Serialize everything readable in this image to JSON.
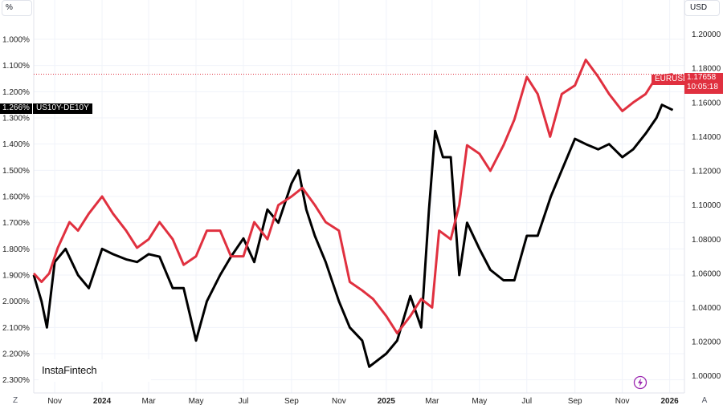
{
  "chart_data": {
    "type": "line",
    "left_axis": {
      "unit": "%",
      "inverted": true,
      "range": [
        0.85,
        2.35
      ],
      "ticks": [
        1.0,
        1.1,
        1.2,
        1.3,
        1.4,
        1.5,
        1.6,
        1.7,
        1.8,
        1.9,
        2.0,
        2.1,
        2.2,
        2.3
      ],
      "tick_labels": [
        "1.000%",
        "1.100%",
        "1.200%",
        "1.300%",
        "1.400%",
        "1.500%",
        "1.600%",
        "1.700%",
        "1.800%",
        "1.900%",
        "2.000%",
        "2.100%",
        "2.200%",
        "2.300%"
      ]
    },
    "right_axis": {
      "unit": "USD",
      "range": [
        0.99,
        1.22
      ],
      "ticks": [
        1.0,
        1.02,
        1.04,
        1.06,
        1.08,
        1.1,
        1.12,
        1.14,
        1.16,
        1.18,
        1.2
      ],
      "tick_labels": [
        "1.00000",
        "1.02000",
        "1.04000",
        "1.06000",
        "1.08000",
        "1.10000",
        "1.12000",
        "1.14000",
        "1.16000",
        "1.18000",
        "1.20000"
      ]
    },
    "x_axis": {
      "range": [
        "2023-10-05",
        "2026-01-20"
      ],
      "ticks": [
        {
          "date": "2023-11-01",
          "label": "Nov",
          "bold": false
        },
        {
          "date": "2024-01-01",
          "label": "2024",
          "bold": true
        },
        {
          "date": "2024-03-01",
          "label": "Mar",
          "bold": false
        },
        {
          "date": "2024-05-01",
          "label": "May",
          "bold": false
        },
        {
          "date": "2024-07-01",
          "label": "Jul",
          "bold": false
        },
        {
          "date": "2024-09-01",
          "label": "Sep",
          "bold": false
        },
        {
          "date": "2024-11-01",
          "label": "Nov",
          "bold": false
        },
        {
          "date": "2025-01-01",
          "label": "2025",
          "bold": true
        },
        {
          "date": "2025-03-01",
          "label": "Mar",
          "bold": false
        },
        {
          "date": "2025-05-01",
          "label": "May",
          "bold": false
        },
        {
          "date": "2025-07-01",
          "label": "Jul",
          "bold": false
        },
        {
          "date": "2025-09-01",
          "label": "Sep",
          "bold": false
        },
        {
          "date": "2025-11-01",
          "label": "Nov",
          "bold": false
        },
        {
          "date": "2026-01-01",
          "label": "2026",
          "bold": true
        }
      ]
    },
    "series": [
      {
        "name": "US10Y-DE10Y",
        "axis": "left",
        "color": "#000000",
        "last_value_label": "1.266%",
        "points": [
          [
            "2023-10-05",
            1.9
          ],
          [
            "2023-10-15",
            2.0
          ],
          [
            "2023-10-22",
            2.1
          ],
          [
            "2023-11-01",
            1.85
          ],
          [
            "2023-11-15",
            1.8
          ],
          [
            "2023-12-01",
            1.9
          ],
          [
            "2023-12-15",
            1.95
          ],
          [
            "2024-01-01",
            1.8
          ],
          [
            "2024-01-15",
            1.82
          ],
          [
            "2024-02-01",
            1.84
          ],
          [
            "2024-02-15",
            1.85
          ],
          [
            "2024-03-01",
            1.82
          ],
          [
            "2024-03-15",
            1.83
          ],
          [
            "2024-04-01",
            1.95
          ],
          [
            "2024-04-15",
            1.95
          ],
          [
            "2024-05-01",
            2.15
          ],
          [
            "2024-05-15",
            2.0
          ],
          [
            "2024-06-01",
            1.9
          ],
          [
            "2024-06-15",
            1.83
          ],
          [
            "2024-07-01",
            1.76
          ],
          [
            "2024-07-15",
            1.85
          ],
          [
            "2024-08-01",
            1.65
          ],
          [
            "2024-08-15",
            1.7
          ],
          [
            "2024-09-01",
            1.55
          ],
          [
            "2024-09-10",
            1.5
          ],
          [
            "2024-09-20",
            1.65
          ],
          [
            "2024-10-01",
            1.75
          ],
          [
            "2024-10-15",
            1.85
          ],
          [
            "2024-11-01",
            2.0
          ],
          [
            "2024-11-15",
            2.1
          ],
          [
            "2024-12-01",
            2.15
          ],
          [
            "2024-12-10",
            2.25
          ],
          [
            "2025-01-01",
            2.2
          ],
          [
            "2025-01-15",
            2.15
          ],
          [
            "2025-02-01",
            1.98
          ],
          [
            "2025-02-15",
            2.1
          ],
          [
            "2025-02-25",
            1.65
          ],
          [
            "2025-03-05",
            1.35
          ],
          [
            "2025-03-15",
            1.45
          ],
          [
            "2025-03-25",
            1.45
          ],
          [
            "2025-04-05",
            1.9
          ],
          [
            "2025-04-15",
            1.7
          ],
          [
            "2025-05-01",
            1.8
          ],
          [
            "2025-05-15",
            1.88
          ],
          [
            "2025-06-01",
            1.92
          ],
          [
            "2025-06-15",
            1.92
          ],
          [
            "2025-07-01",
            1.75
          ],
          [
            "2025-07-15",
            1.75
          ],
          [
            "2025-08-01",
            1.6
          ],
          [
            "2025-08-15",
            1.5
          ],
          [
            "2025-09-01",
            1.38
          ],
          [
            "2025-09-15",
            1.4
          ],
          [
            "2025-10-01",
            1.42
          ],
          [
            "2025-10-15",
            1.4
          ],
          [
            "2025-11-01",
            1.45
          ],
          [
            "2025-11-15",
            1.42
          ],
          [
            "2025-12-01",
            1.36
          ],
          [
            "2025-12-15",
            1.3
          ],
          [
            "2025-12-22",
            1.25
          ],
          [
            "2026-01-05",
            1.27
          ]
        ]
      },
      {
        "name": "EURUSD",
        "axis": "right",
        "color": "#e0303f",
        "last_value_label": "1.17658",
        "countdown_label": "10:05:18",
        "points": [
          [
            "2023-10-05",
            1.06
          ],
          [
            "2023-10-15",
            1.055
          ],
          [
            "2023-10-25",
            1.06
          ],
          [
            "2023-11-05",
            1.075
          ],
          [
            "2023-11-20",
            1.09
          ],
          [
            "2023-12-01",
            1.085
          ],
          [
            "2023-12-15",
            1.095
          ],
          [
            "2024-01-01",
            1.105
          ],
          [
            "2024-01-15",
            1.095
          ],
          [
            "2024-02-01",
            1.085
          ],
          [
            "2024-02-15",
            1.075
          ],
          [
            "2024-03-01",
            1.08
          ],
          [
            "2024-03-15",
            1.09
          ],
          [
            "2024-04-01",
            1.08
          ],
          [
            "2024-04-15",
            1.065
          ],
          [
            "2024-05-01",
            1.07
          ],
          [
            "2024-05-15",
            1.085
          ],
          [
            "2024-06-01",
            1.085
          ],
          [
            "2024-06-15",
            1.07
          ],
          [
            "2024-07-01",
            1.07
          ],
          [
            "2024-07-15",
            1.09
          ],
          [
            "2024-08-01",
            1.08
          ],
          [
            "2024-08-15",
            1.1
          ],
          [
            "2024-09-01",
            1.105
          ],
          [
            "2024-09-15",
            1.11
          ],
          [
            "2024-10-01",
            1.1
          ],
          [
            "2024-10-15",
            1.09
          ],
          [
            "2024-11-01",
            1.085
          ],
          [
            "2024-11-15",
            1.055
          ],
          [
            "2024-12-01",
            1.05
          ],
          [
            "2024-12-15",
            1.045
          ],
          [
            "2025-01-01",
            1.035
          ],
          [
            "2025-01-15",
            1.025
          ],
          [
            "2025-02-01",
            1.035
          ],
          [
            "2025-02-15",
            1.045
          ],
          [
            "2025-03-01",
            1.04
          ],
          [
            "2025-03-10",
            1.085
          ],
          [
            "2025-03-25",
            1.08
          ],
          [
            "2025-04-05",
            1.1
          ],
          [
            "2025-04-15",
            1.135
          ],
          [
            "2025-05-01",
            1.13
          ],
          [
            "2025-05-15",
            1.12
          ],
          [
            "2025-06-01",
            1.135
          ],
          [
            "2025-06-15",
            1.15
          ],
          [
            "2025-07-01",
            1.175
          ],
          [
            "2025-07-15",
            1.165
          ],
          [
            "2025-07-31",
            1.14
          ],
          [
            "2025-08-15",
            1.165
          ],
          [
            "2025-09-01",
            1.17
          ],
          [
            "2025-09-15",
            1.185
          ],
          [
            "2025-10-01",
            1.175
          ],
          [
            "2025-10-15",
            1.165
          ],
          [
            "2025-11-01",
            1.155
          ],
          [
            "2025-11-15",
            1.16
          ],
          [
            "2025-12-01",
            1.165
          ],
          [
            "2025-12-15",
            1.175
          ],
          [
            "2026-01-05",
            1.17658
          ]
        ]
      }
    ],
    "reference_line": {
      "series": "EURUSD",
      "value": 1.17658
    }
  },
  "axis_units": {
    "left": "%",
    "right": "USD"
  },
  "corner_buttons": {
    "left": "Z",
    "right": "A"
  },
  "tags": {
    "black_value": "1.266%",
    "black_name": "US10Y-DE10Y",
    "red_name": "EURUSD",
    "red_price": "1.17658",
    "red_countdown": "10:05:18"
  },
  "watermark": "InstaFintech",
  "colors": {
    "accent_red": "#e0303f",
    "line_black": "#000000",
    "bolt_purple": "#9c27b0"
  }
}
